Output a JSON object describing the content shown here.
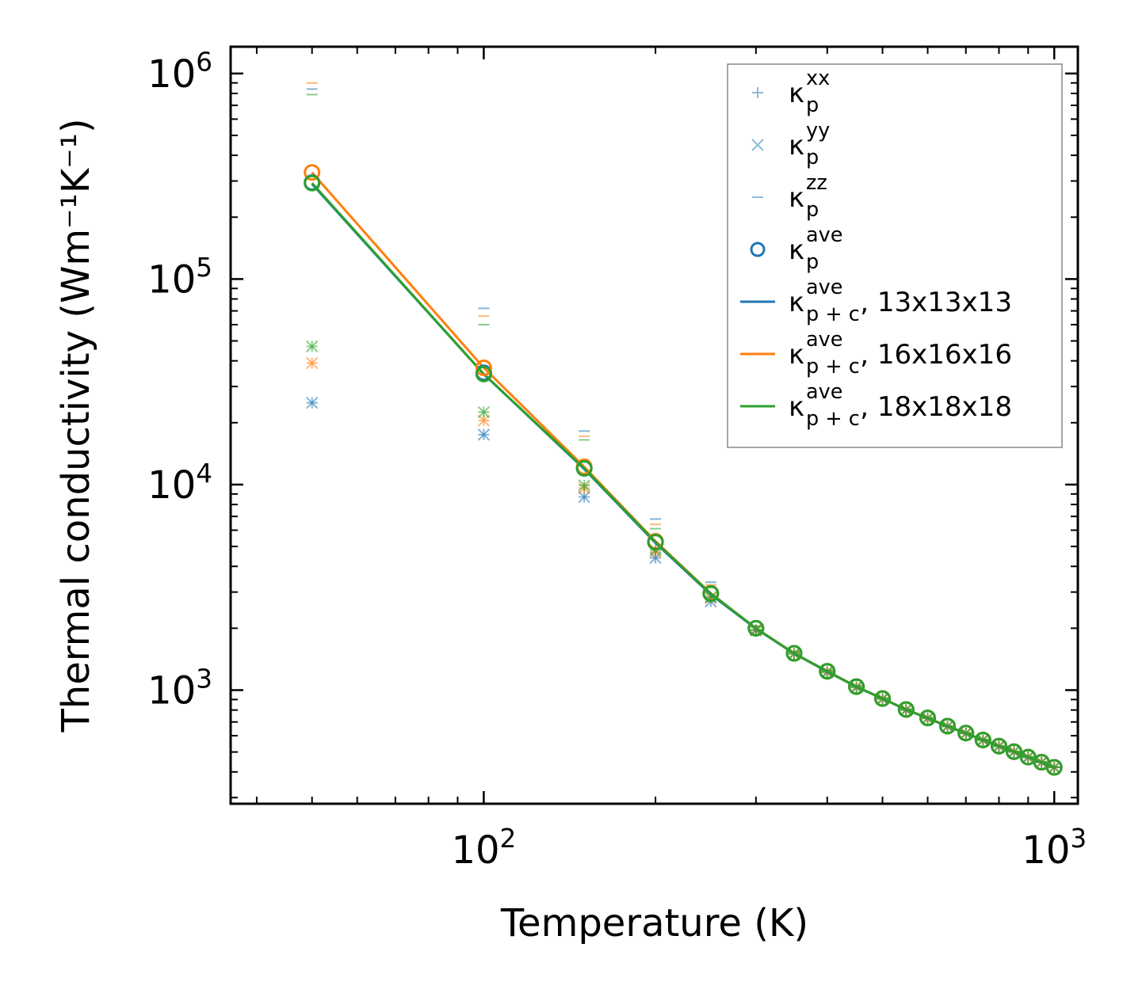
{
  "chart_data": {
    "type": "line",
    "xlabel": "Temperature (K)",
    "ylabel": "Thermal conductivity (Wm⁻¹K⁻¹)",
    "xscale": "log",
    "yscale": "log",
    "xlim": [
      36,
      1100
    ],
    "ylim": [
      280,
      1350000
    ],
    "x_ticks": [
      {
        "value": 100,
        "base": "10",
        "exp": "2"
      },
      {
        "value": 1000,
        "base": "10",
        "exp": "3"
      }
    ],
    "y_ticks": [
      {
        "value": 1000,
        "base": "10",
        "exp": "3"
      },
      {
        "value": 10000,
        "base": "10",
        "exp": "4"
      },
      {
        "value": 100000,
        "base": "10",
        "exp": "5"
      },
      {
        "value": 1000000,
        "base": "10",
        "exp": "6"
      }
    ],
    "colors": {
      "blue": "#1f77b4",
      "orange": "#ff7f0e",
      "green": "#2ca02c"
    },
    "legend": {
      "position": "top-right",
      "entries": [
        {
          "marker": "plus",
          "base": "κ",
          "sub": "p",
          "sup": "xx",
          "suffix": ""
        },
        {
          "marker": "x",
          "base": "κ",
          "sub": "p",
          "sup": "yy",
          "suffix": ""
        },
        {
          "marker": "hline",
          "base": "κ",
          "sub": "p",
          "sup": "zz",
          "suffix": ""
        },
        {
          "marker": "circle",
          "base": "κ",
          "sub": "p",
          "sup": "ave",
          "suffix": ""
        },
        {
          "marker": "line",
          "color": "blue",
          "base": "κ",
          "sub": "p + c",
          "sup": "ave",
          "suffix": ", 13x13x13"
        },
        {
          "marker": "line",
          "color": "orange",
          "base": "κ",
          "sub": "p + c",
          "sup": "ave",
          "suffix": ", 16x16x16"
        },
        {
          "marker": "line",
          "color": "green",
          "base": "κ",
          "sub": "p + c",
          "sup": "ave",
          "suffix": ", 18x18x18"
        }
      ]
    },
    "x": [
      50,
      100,
      150,
      200,
      250,
      300,
      350,
      400,
      450,
      500,
      550,
      600,
      650,
      700,
      750,
      800,
      850,
      900,
      950,
      1000
    ],
    "series": [
      {
        "name": "13x13x13",
        "color": "blue",
        "kxx": [
          25000,
          17500,
          8700,
          4400,
          2700,
          1950,
          1500,
          1220,
          1030,
          905,
          800,
          728,
          665,
          615,
          570,
          532,
          500,
          470,
          445,
          420
        ],
        "kyy": [
          25000,
          17500,
          8700,
          4400,
          2700,
          1950,
          1500,
          1220,
          1030,
          905,
          800,
          728,
          665,
          615,
          570,
          532,
          500,
          470,
          445,
          420
        ],
        "kzz": [
          840000,
          72000,
          18200,
          6800,
          3350,
          2050,
          1540,
          1250,
          1050,
          915,
          808,
          735,
          670,
          620,
          575,
          536,
          503,
          473,
          448,
          423
        ],
        "kave": [
          295000,
          35000,
          12000,
          5250,
          2950,
          2000,
          1510,
          1235,
          1040,
          910,
          805,
          732,
          668,
          618,
          572,
          534,
          502,
          472,
          446,
          421
        ],
        "kpc": [
          290000,
          34500,
          11900,
          5200,
          2920,
          1990,
          1505,
          1230,
          1037,
          908,
          803,
          730,
          666,
          616,
          571,
          533,
          501,
          471,
          445,
          420
        ]
      },
      {
        "name": "16x16x16",
        "color": "orange",
        "kxx": [
          39000,
          20500,
          9600,
          4700,
          2800,
          1960,
          1505,
          1225,
          1035,
          907,
          802,
          730,
          667,
          617,
          572,
          534,
          502,
          472,
          446,
          421
        ],
        "kyy": [
          39000,
          20500,
          9600,
          4700,
          2800,
          1960,
          1505,
          1225,
          1035,
          907,
          802,
          730,
          667,
          617,
          572,
          534,
          502,
          472,
          446,
          421
        ],
        "kzz": [
          900000,
          66000,
          17200,
          6400,
          3250,
          2040,
          1535,
          1245,
          1048,
          913,
          806,
          734,
          669,
          619,
          574,
          535,
          503,
          473,
          447,
          422
        ],
        "kave": [
          330000,
          37000,
          12200,
          5300,
          2960,
          2000,
          1510,
          1235,
          1040,
          910,
          805,
          732,
          668,
          618,
          572,
          534,
          502,
          472,
          446,
          421
        ],
        "kpc": [
          330000,
          37000,
          12200,
          5300,
          2960,
          2000,
          1510,
          1235,
          1040,
          910,
          805,
          732,
          668,
          618,
          572,
          534,
          502,
          472,
          446,
          421
        ]
      },
      {
        "name": "18x18x18",
        "color": "green",
        "kxx": [
          47000,
          22500,
          9900,
          4800,
          2830,
          1970,
          1508,
          1228,
          1037,
          908,
          803,
          731,
          667,
          617,
          572,
          534,
          502,
          472,
          446,
          421
        ],
        "kyy": [
          47000,
          22500,
          9900,
          4800,
          2830,
          1970,
          1508,
          1228,
          1037,
          908,
          803,
          731,
          667,
          617,
          572,
          534,
          502,
          472,
          446,
          421
        ],
        "kzz": [
          790000,
          60000,
          16500,
          6100,
          3150,
          2030,
          1530,
          1242,
          1046,
          912,
          806,
          733,
          669,
          619,
          573,
          535,
          503,
          473,
          447,
          422
        ],
        "kave": [
          293000,
          34500,
          12000,
          5250,
          2950,
          2000,
          1510,
          1235,
          1040,
          910,
          805,
          732,
          668,
          618,
          572,
          534,
          502,
          472,
          446,
          421
        ],
        "kpc": [
          293000,
          34500,
          12000,
          5250,
          2950,
          2000,
          1510,
          1235,
          1040,
          910,
          805,
          732,
          668,
          618,
          572,
          534,
          502,
          472,
          446,
          421
        ]
      }
    ]
  }
}
